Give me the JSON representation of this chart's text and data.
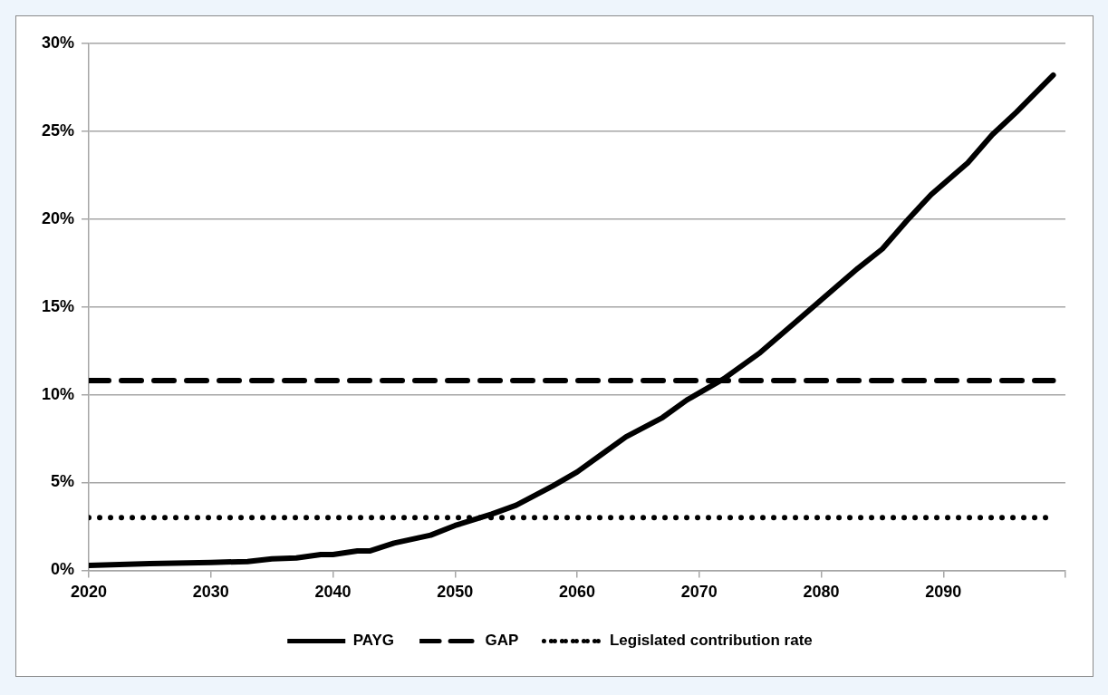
{
  "chart_data": {
    "type": "line",
    "xlim": [
      2020,
      2100
    ],
    "xticks": [
      2020,
      2030,
      2040,
      2050,
      2060,
      2070,
      2080,
      2090,
      {
        "value": 2100,
        "label": null
      }
    ],
    "ylim": [
      0,
      0.3
    ],
    "yticks": [
      {
        "value": 0,
        "label": "0%"
      },
      {
        "value": 0.05,
        "label": "5%"
      },
      {
        "value": 0.1,
        "label": "10%"
      },
      {
        "value": 0.15,
        "label": "15%"
      },
      {
        "value": 0.2,
        "label": "20%"
      },
      {
        "value": 0.25,
        "label": "25%"
      },
      {
        "value": 0.3,
        "label": "30%"
      }
    ],
    "grid": "y",
    "legend": "bottom",
    "marker": "none",
    "series": [
      {
        "name": "PAYG",
        "color": "#000000",
        "line_style": "solid",
        "x": [
          2020,
          2025,
          2030,
          2033,
          2035,
          2037,
          2039,
          2040,
          2042,
          2043,
          2045,
          2048,
          2050,
          2053,
          2055,
          2058,
          2060,
          2062,
          2064,
          2067,
          2069,
          2072,
          2075,
          2078,
          2081,
          2083,
          2085,
          2087,
          2089,
          2092,
          2094,
          2096,
          2099
        ],
        "values": [
          0.0028,
          0.0038,
          0.0045,
          0.005,
          0.0065,
          0.007,
          0.009,
          0.009,
          0.011,
          0.011,
          0.0155,
          0.02,
          0.0255,
          0.032,
          0.037,
          0.048,
          0.056,
          0.066,
          0.076,
          0.087,
          0.097,
          0.109,
          0.124,
          0.142,
          0.16,
          0.172,
          0.183,
          0.199,
          0.214,
          0.232,
          0.248,
          0.261,
          0.282
        ]
      },
      {
        "name": "GAP",
        "color": "#000000",
        "line_style": "dashed",
        "x": [
          2020,
          2099
        ],
        "values": [
          0.108,
          0.108
        ]
      },
      {
        "name": "Legislated contribution rate",
        "color": "#000000",
        "line_style": "dotted",
        "x": [
          2020,
          2099
        ],
        "values": [
          0.03,
          0.03
        ]
      }
    ]
  }
}
